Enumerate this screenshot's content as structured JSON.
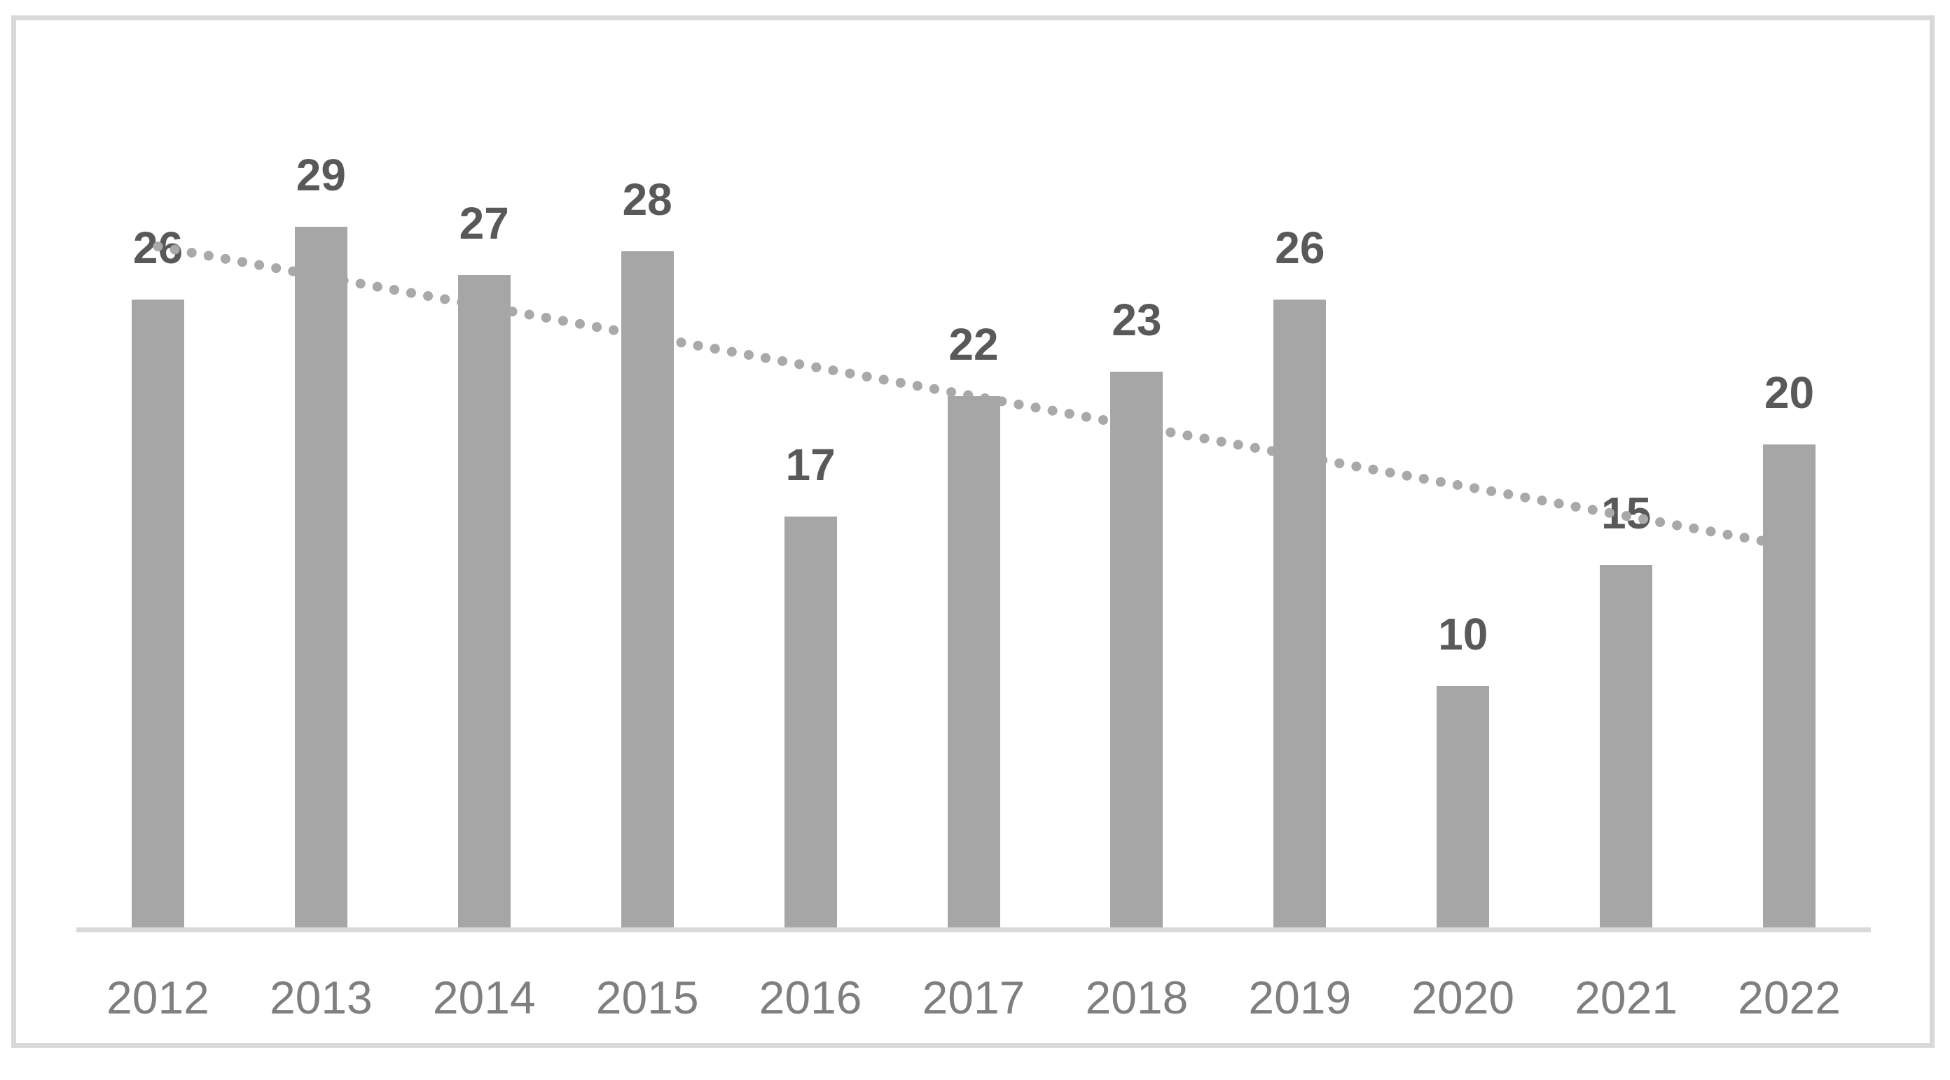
{
  "page": {
    "background": "#ffffff"
  },
  "colors": {
    "bar_fill": "#a6a6a6",
    "data_label": "#595959",
    "tick_label": "#7f7f7f",
    "axis_line": "#d9d9d9",
    "frame_border": "#d9d9d9",
    "trendline": "#a9a9a9"
  },
  "chart_data": {
    "type": "bar",
    "title": "",
    "xlabel": "",
    "ylabel": "",
    "categories": [
      "2012",
      "2013",
      "2014",
      "2015",
      "2016",
      "2017",
      "2018",
      "2019",
      "2020",
      "2021",
      "2022"
    ],
    "values": [
      26,
      29,
      27,
      28,
      17,
      22,
      23,
      26,
      10,
      15,
      20
    ],
    "ylim": [
      0,
      30
    ],
    "grid": false,
    "legend_visible": false,
    "y_axis_visible": false,
    "data_labels_visible": true,
    "trendline": {
      "type": "linear",
      "line_style": "dotted",
      "start_value": 28.2,
      "end_value": 15.8
    }
  }
}
